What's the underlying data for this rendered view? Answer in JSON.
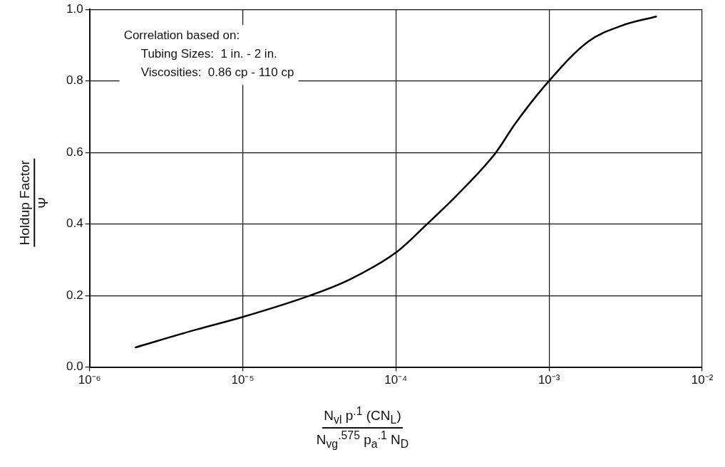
{
  "chart_data": {
    "type": "line",
    "xlabel": "N$_{vl}$ p$^{.1}$ (CN$_{L}$)\nN$_{vg}$$^{.575}$ p$_{a}$$^{.1}$ N$_{D}$",
    "ylabel": "Holdup Factor\nΨ",
    "x": [
      2e-06,
      5e-06,
      1e-05,
      2.75e-05,
      5e-05,
      0.0001,
      0.00016,
      0.00025,
      0.00045,
      0.0006,
      0.001,
      0.0018,
      0.003,
      0.005
    ],
    "series": [
      {
        "color": "#000000",
        "values": [
          0.055,
          0.105,
          0.14,
          0.2,
          0.245,
          0.32,
          0.4,
          0.48,
          0.6,
          0.68,
          0.8,
          0.91,
          0.955,
          0.98
        ]
      }
    ],
    "log": "x",
    "xlim": [
      1e-06,
      0.01
    ],
    "ylim": [
      0,
      1
    ],
    "xticks": [
      {
        "value": 1e-06,
        "label": "10⁻⁶"
      },
      {
        "value": 1e-05,
        "label": "10⁻⁵"
      },
      {
        "value": 0.0001,
        "label": "10⁻⁴"
      },
      {
        "value": 0.001,
        "label": "10⁻³"
      },
      {
        "value": 0.01,
        "label": "10⁻²"
      }
    ],
    "yticks": [
      {
        "value": 0,
        "label": "0.0"
      },
      {
        "value": 0.2,
        "label": "0.2"
      },
      {
        "value": 0.4,
        "label": "0.4"
      },
      {
        "value": 0.6,
        "label": "0.6"
      },
      {
        "value": 0.8,
        "label": "0.8"
      },
      {
        "value": 1,
        "label": "1.0"
      }
    ],
    "grid": true,
    "legend": false,
    "marker": "none",
    "line_style": "solid",
    "annotations": [
      "Correlation based on:",
      "Tubing Sizes:  1 in. - 2 in.",
      "Viscosities:  0.86 cp - 110 cp"
    ]
  }
}
